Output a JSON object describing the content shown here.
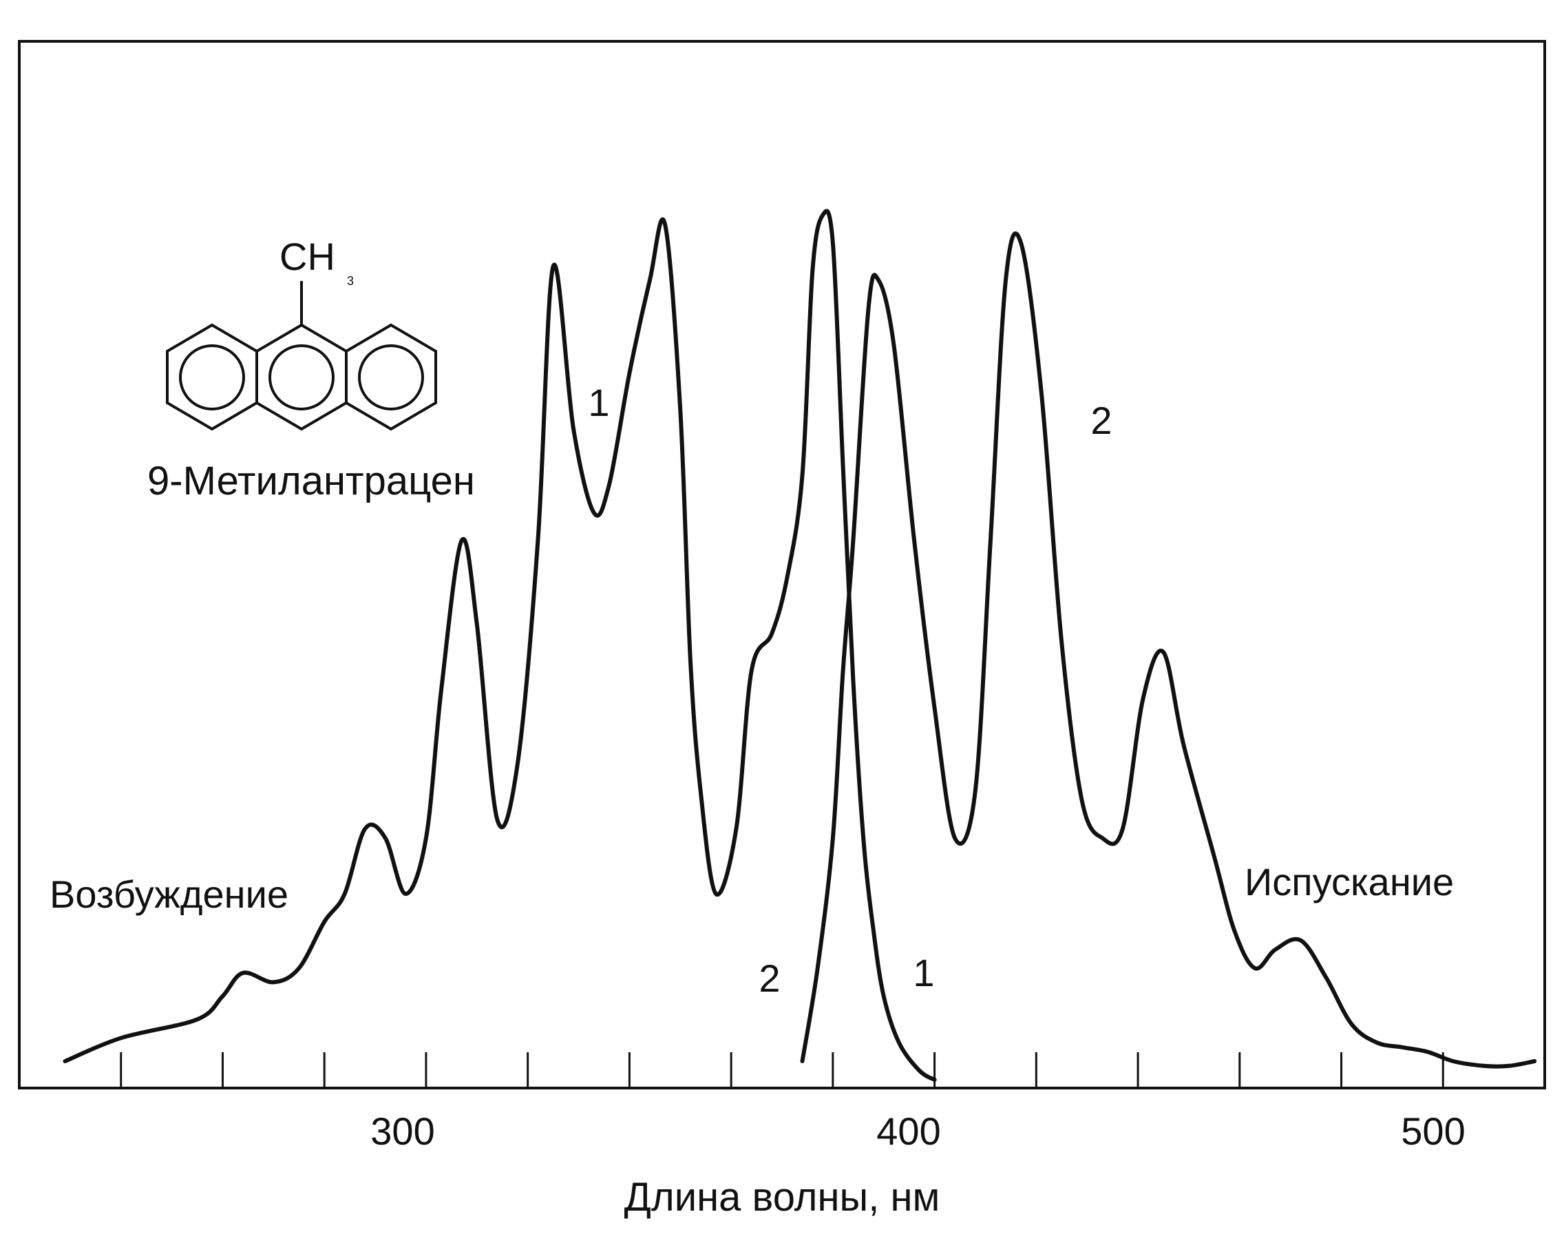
{
  "chart_data": {
    "type": "line",
    "title": "",
    "xlabel": "Длина волны, нм",
    "ylabel": "",
    "xlim": [
      220,
      520
    ],
    "ylim": [
      0,
      1
    ],
    "x_ticks": [
      300,
      400,
      500
    ],
    "x_minor_ticks": [
      240,
      260,
      280,
      300,
      320,
      340,
      360,
      380,
      400,
      420,
      440,
      460,
      480,
      500
    ],
    "grid": false,
    "legend": "none",
    "annotations": {
      "excitation_label": "Возбуждение",
      "emission_label": "Испускание",
      "compound_name": "9-Метилантрацен",
      "formula_main": "CH",
      "formula_sub": "3",
      "curve_label_1a": "1",
      "curve_label_1b": "1",
      "curve_label_2a": "2",
      "curve_label_2b": "2"
    },
    "series": [
      {
        "name": "1",
        "role": "excitation",
        "x": [
          229,
          240,
          255,
          260,
          264,
          270,
          275,
          280,
          284,
          288,
          292,
          296,
          300,
          303,
          307,
          310,
          314,
          318,
          322,
          325,
          329,
          333,
          336,
          340,
          344,
          347,
          350,
          352,
          354,
          357,
          361,
          364,
          368,
          371,
          374,
          376,
          378,
          380,
          382,
          384,
          386,
          388,
          390,
          393,
          397,
          400
        ],
        "y": [
          0.02,
          0.045,
          0.065,
          0.09,
          0.115,
          0.105,
          0.12,
          0.17,
          0.2,
          0.27,
          0.26,
          0.2,
          0.26,
          0.42,
          0.58,
          0.49,
          0.28,
          0.34,
          0.58,
          0.875,
          0.7,
          0.61,
          0.64,
          0.76,
          0.86,
          0.92,
          0.72,
          0.45,
          0.31,
          0.2,
          0.27,
          0.44,
          0.48,
          0.54,
          0.65,
          0.87,
          0.93,
          0.9,
          0.66,
          0.43,
          0.26,
          0.16,
          0.09,
          0.04,
          0.01,
          0.0
        ]
      },
      {
        "name": "2",
        "role": "emission",
        "x": [
          374,
          377,
          380,
          382,
          384,
          387,
          389,
          392,
          396,
          400,
          404,
          408,
          411,
          414,
          417,
          421,
          425,
          429,
          433,
          437,
          441,
          445,
          449,
          455,
          459,
          463,
          467,
          472,
          477,
          482,
          487,
          492,
          497,
          502,
          508,
          513,
          518
        ],
        "y": [
          0.02,
          0.12,
          0.26,
          0.44,
          0.58,
          0.83,
          0.86,
          0.79,
          0.58,
          0.4,
          0.26,
          0.31,
          0.58,
          0.86,
          0.9,
          0.74,
          0.47,
          0.3,
          0.26,
          0.27,
          0.41,
          0.46,
          0.36,
          0.24,
          0.16,
          0.12,
          0.14,
          0.15,
          0.11,
          0.06,
          0.04,
          0.035,
          0.03,
          0.02,
          0.015,
          0.015,
          0.02
        ]
      }
    ]
  }
}
